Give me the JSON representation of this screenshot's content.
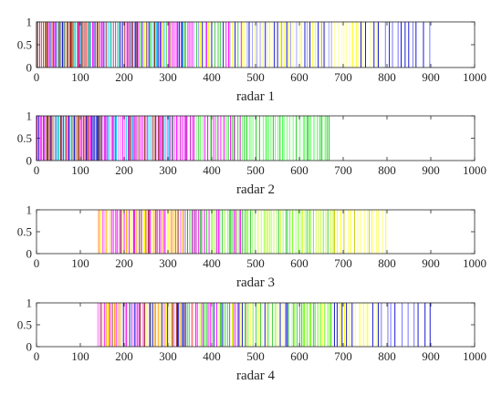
{
  "chart_data": [
    {
      "type": "event-raster",
      "xlabel": "radar 1",
      "xlim": [
        0,
        1000
      ],
      "ylim": [
        0,
        1
      ],
      "xticks": [
        "0",
        "100",
        "200",
        "300",
        "400",
        "500",
        "600",
        "700",
        "800",
        "900",
        "1000"
      ],
      "yticks": [
        "0",
        "0.5",
        "1"
      ],
      "segments": [
        {
          "from": 0,
          "to": 150,
          "step": 3.2,
          "palette": [
            "#e02020",
            "#ff00ff",
            "#00c8c8",
            "#8c1a1a",
            "#b04000",
            "#0000cc"
          ]
        },
        {
          "from": 150,
          "to": 340,
          "step": 3.6,
          "palette": [
            "#00c8ff",
            "#ff00ff",
            "#33cc33",
            "#8c1a1a",
            "#0000cc",
            "#ffff00"
          ]
        },
        {
          "from": 340,
          "to": 470,
          "step": 5.0,
          "palette": [
            "#ffff00",
            "#0000cc",
            "#ff00ff",
            "#33cc33",
            "#8888ff"
          ]
        },
        {
          "from": 470,
          "to": 680,
          "step": 5.5,
          "palette": [
            "#ffff66",
            "#0000cc",
            "#ffff00",
            "#9999ff"
          ]
        },
        {
          "from": 680,
          "to": 780,
          "step": 7.0,
          "palette": [
            "#ffff00",
            "#0000cc",
            "#ffff99"
          ]
        },
        {
          "from": 780,
          "to": 900,
          "step": 12.0,
          "palette": [
            "#0000cc",
            "#6666ff"
          ]
        }
      ]
    },
    {
      "type": "event-raster",
      "xlabel": "radar 2",
      "xlim": [
        0,
        1000
      ],
      "ylim": [
        0,
        1
      ],
      "xticks": [
        "0",
        "100",
        "200",
        "300",
        "400",
        "500",
        "600",
        "700",
        "800",
        "900",
        "1000"
      ],
      "yticks": [
        "0",
        "0.5",
        "1"
      ],
      "segments": [
        {
          "from": 0,
          "to": 150,
          "step": 3.0,
          "palette": [
            "#e02020",
            "#ff00ff",
            "#00c8c8",
            "#8c1a1a",
            "#0000cc",
            "#b04000"
          ]
        },
        {
          "from": 150,
          "to": 340,
          "step": 3.5,
          "palette": [
            "#ff00ff",
            "#00c8ff",
            "#ff66ff",
            "#8c1a1a",
            "#cc00cc"
          ]
        },
        {
          "from": 340,
          "to": 470,
          "step": 4.5,
          "palette": [
            "#33cc33",
            "#ff00ff",
            "#66ff66",
            "#cc00cc"
          ]
        },
        {
          "from": 470,
          "to": 670,
          "step": 6.0,
          "palette": [
            "#33ff33",
            "#00cc00",
            "#66ff66"
          ]
        }
      ]
    },
    {
      "type": "event-raster",
      "xlabel": "radar 3",
      "xlim": [
        0,
        1000
      ],
      "ylim": [
        0,
        1
      ],
      "xticks": [
        "0",
        "100",
        "200",
        "300",
        "400",
        "500",
        "600",
        "700",
        "800",
        "900",
        "1000"
      ],
      "yticks": [
        "0",
        "0.5",
        "1"
      ],
      "segments": [
        {
          "from": 140,
          "to": 340,
          "step": 4.0,
          "palette": [
            "#ff00ff",
            "#ff66ff",
            "#ffff00",
            "#8c1a1a",
            "#ff9900"
          ]
        },
        {
          "from": 340,
          "to": 480,
          "step": 4.5,
          "palette": [
            "#33cc33",
            "#ff00ff",
            "#99ff33",
            "#cc00cc"
          ]
        },
        {
          "from": 480,
          "to": 680,
          "step": 5.0,
          "palette": [
            "#66ff00",
            "#33cc33",
            "#ccff33",
            "#99ff66"
          ]
        },
        {
          "from": 680,
          "to": 800,
          "step": 7.0,
          "palette": [
            "#ffff00",
            "#ffff66",
            "#cccc00"
          ]
        }
      ]
    },
    {
      "type": "event-raster",
      "xlabel": "radar 4",
      "xlim": [
        0,
        1000
      ],
      "ylim": [
        0,
        1
      ],
      "xticks": [
        "0",
        "100",
        "200",
        "300",
        "400",
        "500",
        "600",
        "700",
        "800",
        "900",
        "1000"
      ],
      "yticks": [
        "0",
        "0.5",
        "1"
      ],
      "segments": [
        {
          "from": 140,
          "to": 340,
          "step": 3.8,
          "palette": [
            "#ff00ff",
            "#ffff00",
            "#0000cc",
            "#8c1a1a",
            "#ff66ff",
            "#ff9900"
          ]
        },
        {
          "from": 340,
          "to": 480,
          "step": 4.5,
          "palette": [
            "#33cc33",
            "#0000cc",
            "#ffff00",
            "#ff00ff"
          ]
        },
        {
          "from": 480,
          "to": 680,
          "step": 5.0,
          "palette": [
            "#66ff00",
            "#0000cc",
            "#ffff66",
            "#33cc33"
          ]
        },
        {
          "from": 680,
          "to": 780,
          "step": 6.5,
          "palette": [
            "#ffff00",
            "#0000cc",
            "#ffff99"
          ]
        },
        {
          "from": 780,
          "to": 900,
          "step": 11.0,
          "palette": [
            "#0000cc",
            "#6666ff"
          ]
        }
      ]
    }
  ]
}
